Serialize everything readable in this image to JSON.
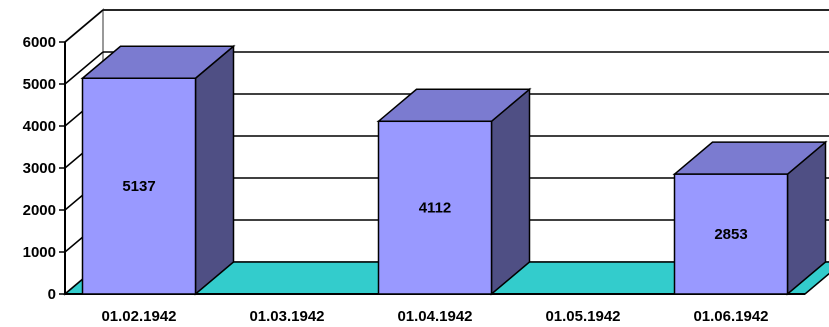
{
  "chart_data": {
    "type": "bar",
    "style": "3d-column",
    "categories": [
      "01.02.1942",
      "01.03.1942",
      "01.04.1942",
      "01.05.1942",
      "01.06.1942"
    ],
    "values": [
      5137,
      0,
      4112,
      0,
      2853
    ],
    "data_labels": [
      "5137",
      "",
      "4112",
      "",
      "2853"
    ],
    "y_ticks": [
      "0",
      "1000",
      "2000",
      "3000",
      "4000",
      "5000",
      "6000"
    ],
    "ylim": [
      0,
      6000
    ],
    "grid": true,
    "legend": "none",
    "colors": {
      "bar_front": "#9999ff",
      "bar_top": "#7b7bd0",
      "bar_side": "#4f4f84",
      "floor": "#33cccc",
      "wall": "#ffffff",
      "wall_edge": "#999999",
      "gridline": "#000000"
    }
  }
}
